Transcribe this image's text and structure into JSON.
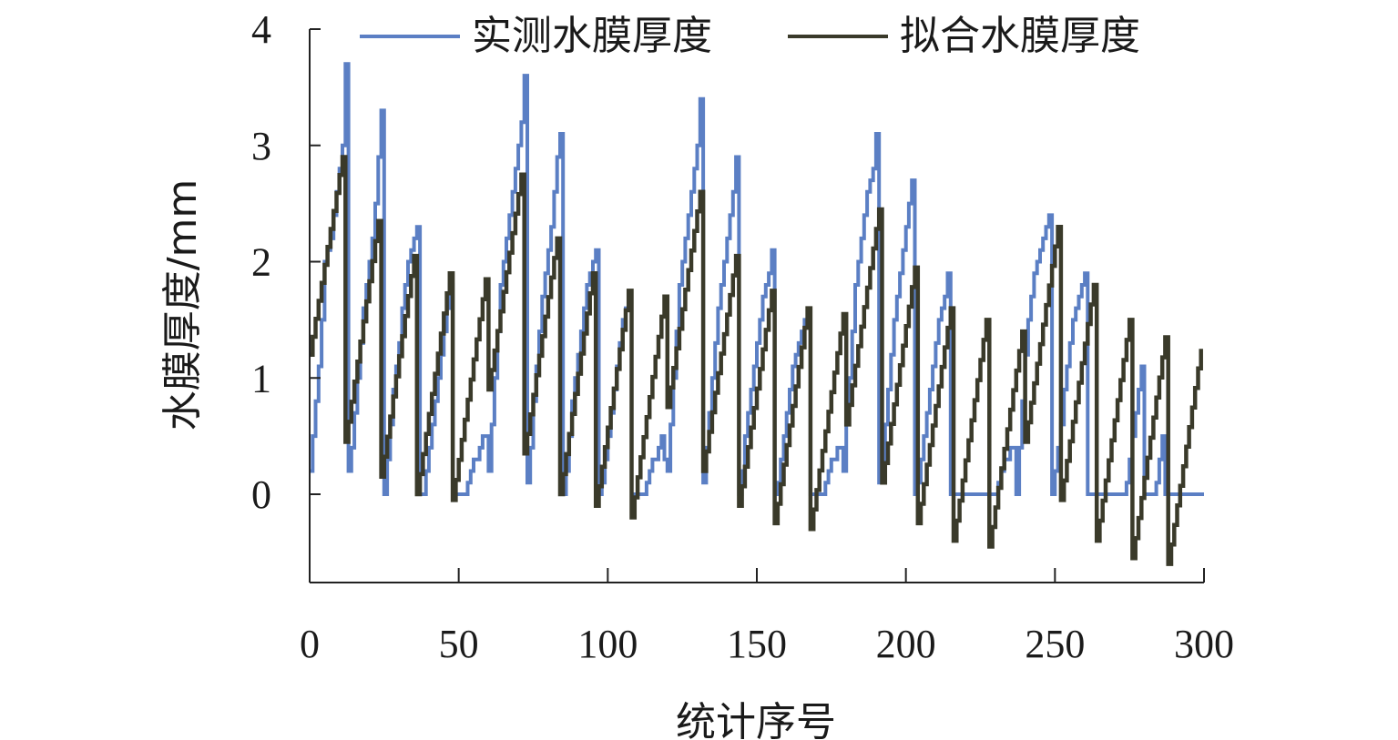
{
  "chart_data": {
    "type": "line",
    "xlabel": "统计序号",
    "ylabel": "水膜厚度/mm",
    "xlim": [
      0,
      300
    ],
    "ylim": [
      -0.75,
      4
    ],
    "xticks": [
      0,
      50,
      100,
      150,
      200,
      250,
      300
    ],
    "yticks": [
      0,
      1,
      2,
      3,
      4
    ],
    "xtick_labels": [
      "0",
      "50",
      "100",
      "150",
      "200",
      "250",
      "300"
    ],
    "ytick_labels": [
      "0",
      "1",
      "2",
      "3",
      "4"
    ],
    "grid": false,
    "legend_position": "top",
    "colors": {
      "measured": "#5b7fc4",
      "fitted": "#3a3a2a",
      "axis": "#222222"
    },
    "series": [
      {
        "name": "实测水膜厚度",
        "color": "#5b7fc4",
        "points": [
          [
            0,
            0.2
          ],
          [
            1,
            0.5
          ],
          [
            2,
            0.8
          ],
          [
            3,
            1.1
          ],
          [
            4,
            1.5
          ],
          [
            5,
            2.0
          ],
          [
            6,
            2.1
          ],
          [
            7,
            2.2
          ],
          [
            8,
            2.4
          ],
          [
            9,
            2.6
          ],
          [
            10,
            2.8
          ],
          [
            11,
            3.0
          ],
          [
            12,
            3.7
          ],
          [
            13,
            0.2
          ],
          [
            14,
            0.4
          ],
          [
            15,
            0.7
          ],
          [
            16,
            1.0
          ],
          [
            17,
            1.3
          ],
          [
            18,
            1.6
          ],
          [
            19,
            1.8
          ],
          [
            20,
            2.0
          ],
          [
            21,
            2.2
          ],
          [
            22,
            2.5
          ],
          [
            23,
            2.9
          ],
          [
            24,
            3.3
          ],
          [
            25,
            0.0
          ],
          [
            26,
            0.3
          ],
          [
            27,
            0.6
          ],
          [
            28,
            0.9
          ],
          [
            29,
            1.1
          ],
          [
            30,
            1.3
          ],
          [
            31,
            1.6
          ],
          [
            32,
            1.8
          ],
          [
            33,
            2.0
          ],
          [
            34,
            2.1
          ],
          [
            35,
            2.2
          ],
          [
            36,
            2.3
          ],
          [
            37,
            0.0
          ],
          [
            38,
            0.0
          ],
          [
            39,
            0.2
          ],
          [
            40,
            0.4
          ],
          [
            41,
            0.6
          ],
          [
            42,
            0.8
          ],
          [
            43,
            1.0
          ],
          [
            44,
            1.2
          ],
          [
            45,
            1.4
          ],
          [
            46,
            1.6
          ],
          [
            47,
            1.8
          ],
          [
            48,
            0.0
          ],
          [
            52,
            0.0
          ],
          [
            53,
            0.1
          ],
          [
            54,
            0.2
          ],
          [
            55,
            0.3
          ],
          [
            56,
            0.3
          ],
          [
            57,
            0.4
          ],
          [
            58,
            0.5
          ],
          [
            59,
            0.5
          ],
          [
            60,
            0.2
          ],
          [
            61,
            0.6
          ],
          [
            62,
            1.0
          ],
          [
            63,
            1.4
          ],
          [
            64,
            1.8
          ],
          [
            65,
            2.0
          ],
          [
            66,
            2.2
          ],
          [
            67,
            2.4
          ],
          [
            68,
            2.6
          ],
          [
            69,
            2.8
          ],
          [
            70,
            3.0
          ],
          [
            71,
            3.2
          ],
          [
            72,
            3.6
          ],
          [
            73,
            0.1
          ],
          [
            74,
            0.4
          ],
          [
            75,
            0.8
          ],
          [
            76,
            1.1
          ],
          [
            77,
            1.4
          ],
          [
            78,
            1.7
          ],
          [
            79,
            1.9
          ],
          [
            80,
            2.1
          ],
          [
            81,
            2.3
          ],
          [
            82,
            2.6
          ],
          [
            83,
            2.9
          ],
          [
            84,
            3.1
          ],
          [
            85,
            0.0
          ],
          [
            86,
            0.2
          ],
          [
            87,
            0.5
          ],
          [
            88,
            0.8
          ],
          [
            89,
            1.0
          ],
          [
            90,
            1.2
          ],
          [
            91,
            1.4
          ],
          [
            92,
            1.6
          ],
          [
            93,
            1.8
          ],
          [
            94,
            1.9
          ],
          [
            95,
            2.0
          ],
          [
            96,
            2.1
          ],
          [
            97,
            0.0
          ],
          [
            98,
            0.1
          ],
          [
            99,
            0.3
          ],
          [
            100,
            0.5
          ],
          [
            101,
            0.7
          ],
          [
            102,
            0.9
          ],
          [
            103,
            1.1
          ],
          [
            104,
            1.3
          ],
          [
            105,
            1.5
          ],
          [
            106,
            1.6
          ],
          [
            107,
            1.7
          ],
          [
            108,
            0.0
          ],
          [
            112,
            0.0
          ],
          [
            113,
            0.1
          ],
          [
            114,
            0.2
          ],
          [
            115,
            0.3
          ],
          [
            116,
            0.3
          ],
          [
            117,
            0.4
          ],
          [
            118,
            0.5
          ],
          [
            119,
            0.3
          ],
          [
            120,
            0.2
          ],
          [
            121,
            0.6
          ],
          [
            122,
            1.0
          ],
          [
            123,
            1.4
          ],
          [
            124,
            1.8
          ],
          [
            125,
            2.0
          ],
          [
            126,
            2.2
          ],
          [
            127,
            2.4
          ],
          [
            128,
            2.6
          ],
          [
            129,
            2.8
          ],
          [
            130,
            3.0
          ],
          [
            131,
            3.4
          ],
          [
            132,
            0.1
          ],
          [
            133,
            0.4
          ],
          [
            134,
            0.7
          ],
          [
            135,
            1.0
          ],
          [
            136,
            1.3
          ],
          [
            137,
            1.6
          ],
          [
            138,
            1.8
          ],
          [
            139,
            2.0
          ],
          [
            140,
            2.2
          ],
          [
            141,
            2.4
          ],
          [
            142,
            2.6
          ],
          [
            143,
            2.9
          ],
          [
            144,
            0.0
          ],
          [
            145,
            0.2
          ],
          [
            146,
            0.5
          ],
          [
            147,
            0.7
          ],
          [
            148,
            0.9
          ],
          [
            149,
            1.1
          ],
          [
            150,
            1.3
          ],
          [
            151,
            1.5
          ],
          [
            152,
            1.7
          ],
          [
            153,
            1.8
          ],
          [
            154,
            1.9
          ],
          [
            155,
            2.1
          ],
          [
            156,
            0.0
          ],
          [
            157,
            0.1
          ],
          [
            158,
            0.3
          ],
          [
            159,
            0.5
          ],
          [
            160,
            0.7
          ],
          [
            161,
            0.9
          ],
          [
            162,
            1.1
          ],
          [
            163,
            1.2
          ],
          [
            164,
            1.3
          ],
          [
            165,
            1.4
          ],
          [
            166,
            1.5
          ],
          [
            167,
            1.6
          ],
          [
            168,
            0.0
          ],
          [
            171,
            0.0
          ],
          [
            172,
            0.0
          ],
          [
            173,
            0.1
          ],
          [
            174,
            0.2
          ],
          [
            175,
            0.3
          ],
          [
            176,
            0.3
          ],
          [
            177,
            0.4
          ],
          [
            178,
            0.4
          ],
          [
            179,
            0.2
          ],
          [
            180,
            0.6
          ],
          [
            181,
            1.0
          ],
          [
            182,
            1.4
          ],
          [
            183,
            1.8
          ],
          [
            184,
            2.0
          ],
          [
            185,
            2.2
          ],
          [
            186,
            2.4
          ],
          [
            187,
            2.6
          ],
          [
            188,
            2.7
          ],
          [
            189,
            2.8
          ],
          [
            190,
            3.1
          ],
          [
            191,
            0.1
          ],
          [
            192,
            0.3
          ],
          [
            193,
            0.6
          ],
          [
            194,
            0.9
          ],
          [
            195,
            1.2
          ],
          [
            196,
            1.5
          ],
          [
            197,
            1.7
          ],
          [
            198,
            1.9
          ],
          [
            199,
            2.1
          ],
          [
            200,
            2.3
          ],
          [
            201,
            2.5
          ],
          [
            202,
            2.7
          ],
          [
            203,
            0.0
          ],
          [
            204,
            0.1
          ],
          [
            205,
            0.3
          ],
          [
            206,
            0.5
          ],
          [
            207,
            0.7
          ],
          [
            208,
            0.9
          ],
          [
            209,
            1.1
          ],
          [
            210,
            1.3
          ],
          [
            211,
            1.5
          ],
          [
            212,
            1.6
          ],
          [
            213,
            1.7
          ],
          [
            214,
            1.9
          ],
          [
            215,
            0.0
          ],
          [
            229,
            0.0
          ],
          [
            230,
            0.0
          ],
          [
            231,
            0.1
          ],
          [
            232,
            0.2
          ],
          [
            233,
            0.3
          ],
          [
            234,
            0.3
          ],
          [
            235,
            0.4
          ],
          [
            236,
            0.4
          ],
          [
            237,
            0.0
          ],
          [
            238,
            0.4
          ],
          [
            239,
            0.8
          ],
          [
            240,
            1.2
          ],
          [
            241,
            1.5
          ],
          [
            242,
            1.7
          ],
          [
            243,
            1.9
          ],
          [
            244,
            2.0
          ],
          [
            245,
            2.1
          ],
          [
            246,
            2.2
          ],
          [
            247,
            2.3
          ],
          [
            248,
            2.4
          ],
          [
            249,
            0.0
          ],
          [
            250,
            0.2
          ],
          [
            251,
            0.4
          ],
          [
            252,
            0.6
          ],
          [
            253,
            0.9
          ],
          [
            254,
            1.1
          ],
          [
            255,
            1.3
          ],
          [
            256,
            1.5
          ],
          [
            257,
            1.6
          ],
          [
            258,
            1.7
          ],
          [
            259,
            1.8
          ],
          [
            260,
            1.9
          ],
          [
            261,
            0.0
          ],
          [
            273,
            0.0
          ],
          [
            274,
            0.1
          ],
          [
            275,
            0.3
          ],
          [
            276,
            0.5
          ],
          [
            277,
            0.7
          ],
          [
            278,
            0.9
          ],
          [
            279,
            1.1
          ],
          [
            280,
            0.0
          ],
          [
            283,
            0.0
          ],
          [
            284,
            0.1
          ],
          [
            285,
            0.3
          ],
          [
            286,
            0.5
          ],
          [
            287,
            0.0
          ],
          [
            300,
            0.0
          ]
        ]
      },
      {
        "name": "拟合水膜厚度",
        "color": "#3a3a2a",
        "cycles": [
          {
            "x0": 0,
            "x1": 12,
            "y0": 1.2,
            "y1": 2.9
          },
          {
            "x0": 12,
            "x1": 24,
            "y0": 0.45,
            "y1": 2.35
          },
          {
            "x0": 24,
            "x1": 36,
            "y0": 0.15,
            "y1": 2.05
          },
          {
            "x0": 36,
            "x1": 48,
            "y0": 0.0,
            "y1": 1.9
          },
          {
            "x0": 48,
            "x1": 60,
            "y0": -0.05,
            "y1": 1.85
          },
          {
            "x0": 60,
            "x1": 72,
            "y0": 0.9,
            "y1": 2.75
          },
          {
            "x0": 72,
            "x1": 84,
            "y0": 0.35,
            "y1": 2.2
          },
          {
            "x0": 84,
            "x1": 96,
            "y0": 0.0,
            "y1": 1.9
          },
          {
            "x0": 96,
            "x1": 108,
            "y0": -0.1,
            "y1": 1.75
          },
          {
            "x0": 108,
            "x1": 120,
            "y0": -0.2,
            "y1": 1.7
          },
          {
            "x0": 120,
            "x1": 132,
            "y0": 0.75,
            "y1": 2.6
          },
          {
            "x0": 132,
            "x1": 144,
            "y0": 0.2,
            "y1": 2.05
          },
          {
            "x0": 144,
            "x1": 156,
            "y0": -0.1,
            "y1": 1.75
          },
          {
            "x0": 156,
            "x1": 168,
            "y0": -0.25,
            "y1": 1.6
          },
          {
            "x0": 168,
            "x1": 180,
            "y0": -0.3,
            "y1": 1.55
          },
          {
            "x0": 180,
            "x1": 192,
            "y0": 0.6,
            "y1": 2.45
          },
          {
            "x0": 192,
            "x1": 204,
            "y0": 0.1,
            "y1": 1.95
          },
          {
            "x0": 204,
            "x1": 216,
            "y0": -0.25,
            "y1": 1.6
          },
          {
            "x0": 216,
            "x1": 228,
            "y0": -0.4,
            "y1": 1.5
          },
          {
            "x0": 228,
            "x1": 240,
            "y0": -0.45,
            "y1": 1.4
          },
          {
            "x0": 240,
            "x1": 252,
            "y0": 0.45,
            "y1": 2.3
          },
          {
            "x0": 252,
            "x1": 264,
            "y0": -0.05,
            "y1": 1.8
          },
          {
            "x0": 264,
            "x1": 276,
            "y0": -0.4,
            "y1": 1.5
          },
          {
            "x0": 276,
            "x1": 288,
            "y0": -0.55,
            "y1": 1.35
          },
          {
            "x0": 288,
            "x1": 300,
            "y0": -0.6,
            "y1": 1.25
          }
        ]
      }
    ]
  }
}
